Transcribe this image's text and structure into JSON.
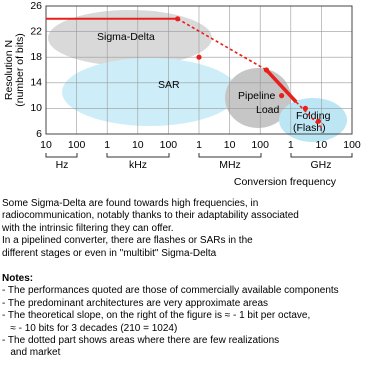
{
  "chart_data": {
    "type": "line",
    "y_label": [
      "Resolution N",
      "(number of bits)"
    ],
    "x_label": "Conversion frequency",
    "x_units": [
      "Hz",
      "kHz",
      "MHz",
      "GHz"
    ],
    "region_labels": [
      "Sigma-Delta",
      "SAR",
      "Pipeline",
      "Load",
      "Folding",
      "(Flash)"
    ],
    "log_x": true,
    "xlim": [
      10,
      100000000000
    ],
    "xticks": [
      10,
      100,
      {
        "value": 1000,
        "label": "1"
      },
      {
        "value": 10000,
        "label": "10"
      },
      {
        "value": 100000,
        "label": "100"
      },
      {
        "value": 1000000,
        "label": "1"
      },
      {
        "value": 10000000,
        "label": "10"
      },
      {
        "value": 100000000,
        "label": "100"
      },
      {
        "value": 1000000000,
        "label": "1"
      },
      {
        "value": 10000000000,
        "label": "10"
      },
      {
        "value": 100000000000,
        "label": "100"
      }
    ],
    "ylim": [
      6,
      26
    ],
    "yticks": [
      6,
      10,
      14,
      18,
      22,
      26
    ],
    "grid": true,
    "color": "#e8201c",
    "series": [
      {
        "style": "solid",
        "x": [
          10,
          200000
        ],
        "values": [
          24,
          24
        ]
      },
      {
        "style": "dotted",
        "x": [
          200000,
          160000000
        ],
        "values": [
          24,
          16
        ]
      },
      {
        "style": "thick",
        "x": [
          160000000,
          1500000000
        ],
        "values": [
          16,
          11
        ]
      },
      {
        "style": "dotted",
        "x": [
          1500000000,
          10000000000
        ],
        "values": [
          11,
          7
        ]
      }
    ],
    "points": {
      "x": [
        200000,
        1000000,
        160000000,
        500000000,
        3000000000,
        8000000000
      ],
      "values": [
        24,
        18,
        16,
        12,
        10,
        8
      ]
    }
  },
  "document": {
    "paragraph": [
      "Some Sigma-Delta are found towards high frequencies, in",
      "radiocommunication, notably thanks to their adaptability associated",
      "with the intrinsic filtering they can offer.",
      "In a pipelined converter, there are flashes or SARs in the",
      "different stages or even in \"multibit\" Sigma-Delta"
    ],
    "notes_title": "Notes:",
    "notes": [
      "- The performances quoted are those of commercially available components",
      "- The predominant architectures are very approximate areas",
      "- The theoretical slope, on the right of the figure is ≈ - 1 bit per octave,",
      "   ≈ - 10 bits for 3 decades (210 = 1024)",
      "- The dotted part shows areas where there are few realizations",
      "   and market"
    ]
  }
}
